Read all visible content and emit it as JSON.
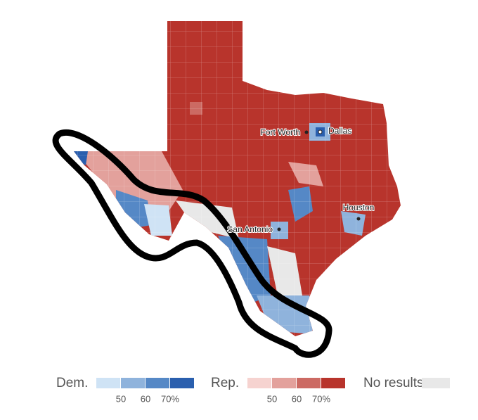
{
  "map": {
    "cities": [
      {
        "label": "Fort Worth"
      },
      {
        "label": "Dallas"
      },
      {
        "label": "Houston"
      },
      {
        "label": "San Antonio"
      }
    ],
    "legend": {
      "dem": {
        "label": "Dem.",
        "colors": [
          "#cfe3f5",
          "#8fb3dc",
          "#5588c6",
          "#2a5fae"
        ],
        "ticks": [
          "50",
          "60",
          "70%"
        ]
      },
      "rep": {
        "label": "Rep.",
        "colors": [
          "#f6d3d0",
          "#e3a19c",
          "#cc6a63",
          "#b8342c"
        ],
        "ticks": [
          "50",
          "60",
          "70%"
        ]
      },
      "none": {
        "label": "No results",
        "color": "#e8e8e8"
      }
    }
  }
}
